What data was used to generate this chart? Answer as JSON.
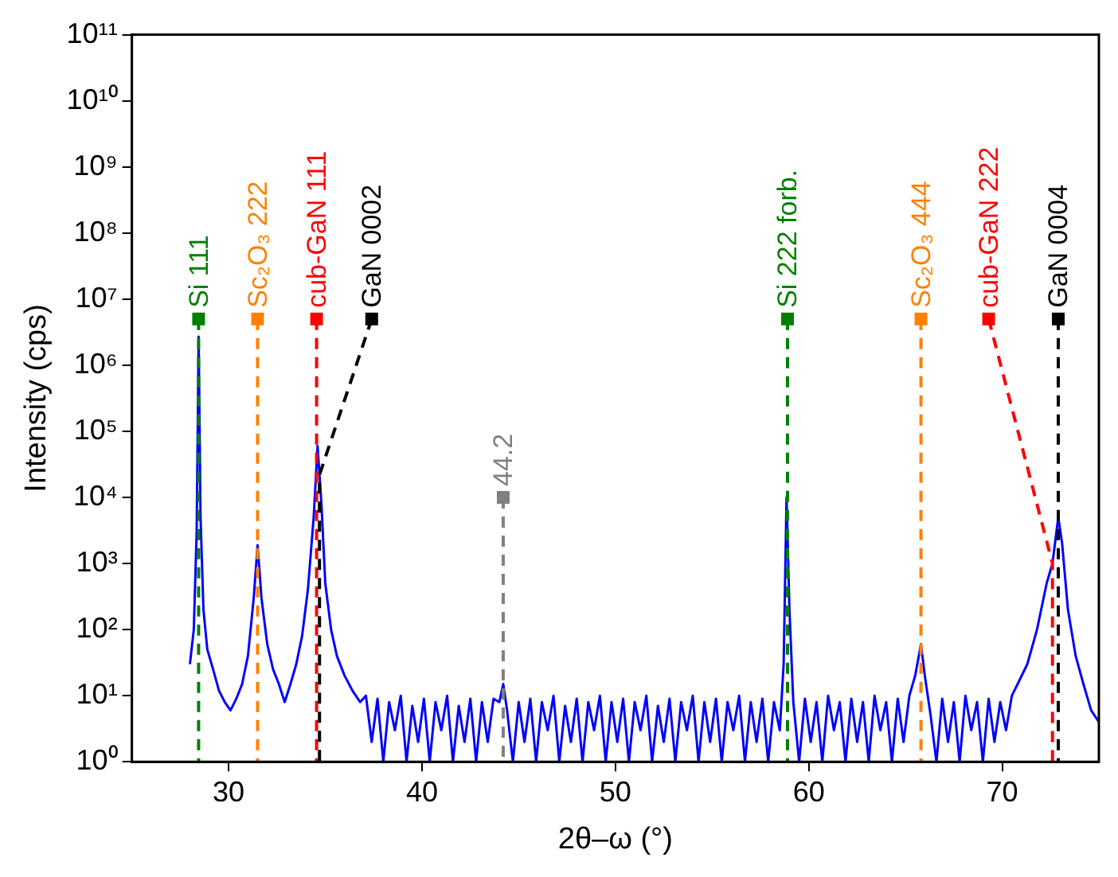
{
  "chart_data": {
    "type": "line",
    "xlabel": "2θ–ω (°)",
    "ylabel": "Intensity (cps)",
    "log": "y",
    "grid": false,
    "legend": false,
    "marker": "none",
    "line_style": "solid",
    "xlim": [
      25,
      75
    ],
    "xticks": [
      30,
      40,
      50,
      60,
      70
    ],
    "ylim": [
      1,
      100000000000
    ],
    "yticks": [
      {
        "value": 1,
        "label": "10⁰"
      },
      {
        "value": 10,
        "label": "10¹"
      },
      {
        "value": 100,
        "label": "10²"
      },
      {
        "value": 1000,
        "label": "10³"
      },
      {
        "value": 10000,
        "label": "10⁴"
      },
      {
        "value": 100000,
        "label": "10⁵"
      },
      {
        "value": 1000000,
        "label": "10⁶"
      },
      {
        "value": 10000000,
        "label": "10⁷"
      },
      {
        "value": 100000000,
        "label": "10⁸"
      },
      {
        "value": 1000000000,
        "label": "10⁹"
      },
      {
        "value": 10000000000,
        "label": "10¹⁰"
      },
      {
        "value": 100000000000,
        "label": "10¹¹"
      }
    ],
    "series": [
      {
        "color": "#0000ff",
        "x": [
          28.0,
          28.2,
          28.35,
          28.45,
          28.55,
          28.7,
          28.9,
          29.2,
          29.5,
          29.8,
          30.1,
          30.4,
          30.7,
          31.0,
          31.3,
          31.5,
          31.7,
          32.0,
          32.3,
          32.6,
          32.9,
          33.2,
          33.5,
          33.8,
          34.1,
          34.4,
          34.6,
          34.8,
          35.0,
          35.3,
          35.6,
          36.0,
          36.4,
          36.8,
          37.1,
          37.4,
          37.7,
          38.0,
          38.3,
          38.6,
          38.9,
          39.2,
          39.5,
          39.8,
          40.1,
          40.4,
          40.7,
          41.0,
          41.3,
          41.6,
          41.9,
          42.2,
          42.5,
          42.8,
          43.1,
          43.4,
          43.7,
          44.0,
          44.2,
          44.4,
          44.7,
          45.0,
          45.3,
          45.6,
          45.9,
          46.2,
          46.5,
          46.8,
          47.1,
          47.4,
          47.7,
          48.0,
          48.3,
          48.6,
          48.9,
          49.2,
          49.5,
          49.8,
          50.1,
          50.4,
          50.7,
          51.0,
          51.3,
          51.6,
          51.9,
          52.2,
          52.5,
          52.8,
          53.1,
          53.4,
          53.7,
          54.0,
          54.3,
          54.6,
          54.9,
          55.2,
          55.5,
          55.8,
          56.1,
          56.4,
          56.7,
          57.0,
          57.3,
          57.6,
          57.9,
          58.2,
          58.5,
          58.7,
          58.85,
          59.0,
          59.2,
          59.5,
          59.8,
          60.1,
          60.4,
          60.7,
          61.0,
          61.3,
          61.6,
          61.9,
          62.2,
          62.5,
          62.8,
          63.1,
          63.4,
          63.7,
          64.0,
          64.3,
          64.6,
          64.9,
          65.2,
          65.5,
          65.8,
          66.0,
          66.3,
          66.6,
          66.9,
          67.2,
          67.5,
          67.8,
          68.1,
          68.4,
          68.7,
          69.0,
          69.3,
          69.6,
          69.9,
          70.2,
          70.5,
          70.8,
          71.3,
          71.8,
          72.3,
          72.6,
          72.9,
          73.1,
          73.4,
          73.8,
          74.2,
          74.6,
          75.0
        ],
        "values": [
          30,
          100,
          3000,
          2700000,
          5000,
          200,
          50,
          25,
          12,
          8,
          6,
          9,
          15,
          40,
          300,
          1900,
          300,
          60,
          25,
          15,
          8,
          15,
          30,
          80,
          400,
          5000,
          60000,
          8000,
          500,
          100,
          40,
          20,
          12,
          8,
          10,
          2,
          9,
          1,
          8,
          3,
          10,
          1,
          7,
          2,
          9,
          1,
          8,
          3,
          10,
          1,
          7,
          2,
          9,
          1,
          8,
          2,
          9,
          8,
          15,
          6,
          1,
          8,
          2,
          9,
          1,
          8,
          3,
          10,
          1,
          7,
          2,
          9,
          1,
          8,
          3,
          10,
          1,
          8,
          2,
          9,
          1,
          8,
          3,
          10,
          1,
          7,
          2,
          9,
          1,
          8,
          3,
          10,
          1,
          8,
          2,
          9,
          1,
          8,
          3,
          10,
          1,
          8,
          2,
          9,
          1,
          8,
          3,
          30,
          10000,
          200,
          8,
          1,
          9,
          2,
          8,
          1,
          10,
          3,
          8,
          1,
          9,
          2,
          8,
          1,
          10,
          3,
          8,
          1,
          9,
          2,
          10,
          20,
          60,
          20,
          5,
          1,
          9,
          2,
          8,
          1,
          10,
          3,
          8,
          1,
          9,
          2,
          8,
          3,
          10,
          15,
          30,
          100,
          500,
          1000,
          5000,
          2000,
          200,
          40,
          15,
          6,
          4
        ]
      }
    ],
    "ref_lines": [
      {
        "axis": "x",
        "value": 28.45,
        "color": "#008000",
        "line_style": "dashed"
      },
      {
        "axis": "x",
        "value": 31.5,
        "color": "#ff8000",
        "line_style": "dashed"
      },
      {
        "axis": "x",
        "value": 34.55,
        "color": "#ff0000",
        "line_style": "dashed"
      },
      {
        "axis": "x",
        "value": 34.7,
        "color": "#000000",
        "line_style": "dashed"
      },
      {
        "axis": "x",
        "value": 44.2,
        "color": "#808080",
        "line_style": "dashed"
      },
      {
        "axis": "x",
        "value": 58.9,
        "color": "#008000",
        "line_style": "dashed"
      },
      {
        "axis": "x",
        "value": 65.8,
        "color": "#ff8000",
        "line_style": "dashed"
      },
      {
        "axis": "x",
        "value": 72.6,
        "color": "#ff0000",
        "line_style": "dashed"
      },
      {
        "axis": "x",
        "value": 72.9,
        "color": "#000000",
        "line_style": "dashed"
      }
    ],
    "annotations": [
      {
        "text": "Si 111",
        "x": 28.45,
        "y": 5000000
      },
      {
        "text": "Sc₂O₃ 222",
        "x": 31.5,
        "y": 5000000
      },
      {
        "text": "cub-GaN 111",
        "x": 34.55,
        "y": 5000000
      },
      {
        "text": "GaN 0002",
        "x": 37.4,
        "y": 5000000
      },
      {
        "text": "44.2",
        "x": 44.2,
        "y": 10000
      },
      {
        "text": "Si 222 forb.",
        "x": 58.9,
        "y": 5000000
      },
      {
        "text": "Sc₂O₃ 444",
        "x": 65.8,
        "y": 5000000
      },
      {
        "text": "cub-GaN 222",
        "x": 69.3,
        "y": 5000000
      },
      {
        "text": "GaN 0004",
        "x": 72.9,
        "y": 5000000
      }
    ]
  }
}
